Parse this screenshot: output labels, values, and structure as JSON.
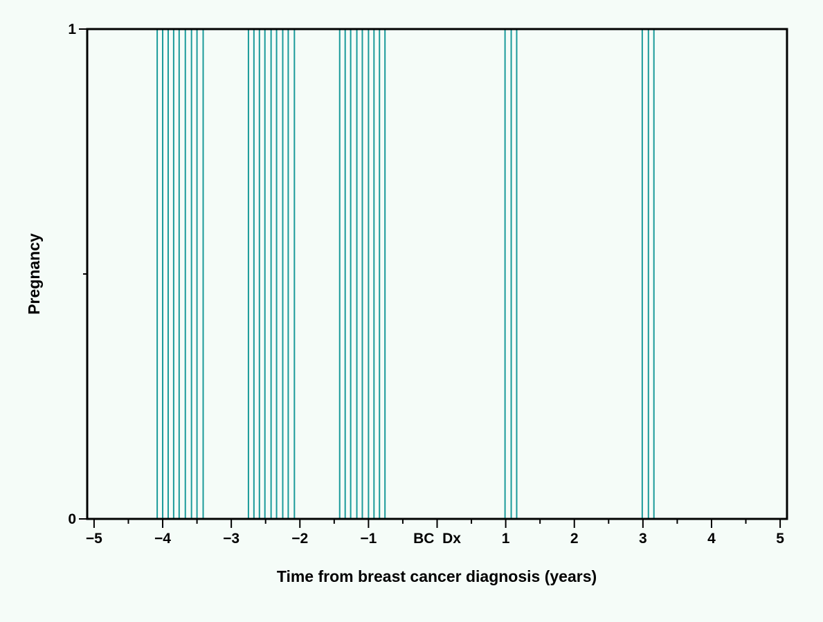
{
  "chart_data": {
    "type": "bar",
    "title": "",
    "xlabel": "Time from breast cancer diagnosis (years)",
    "ylabel": "Pregnancy",
    "xlim": [
      -5.1,
      5.1
    ],
    "ylim": [
      0,
      1
    ],
    "x_ticks": [
      {
        "value": -5,
        "label": "−5"
      },
      {
        "value": -4,
        "label": "−4"
      },
      {
        "value": -3,
        "label": "−3"
      },
      {
        "value": -2,
        "label": "−2"
      },
      {
        "value": -1,
        "label": "−1"
      },
      {
        "value": 0,
        "label": "BC  Dx"
      },
      {
        "value": 1,
        "label": "1"
      },
      {
        "value": 2,
        "label": "2"
      },
      {
        "value": 3,
        "label": "3"
      },
      {
        "value": 4,
        "label": "4"
      },
      {
        "value": 5,
        "label": "5"
      }
    ],
    "y_ticks": [
      {
        "value": 0,
        "label": "0"
      },
      {
        "value": 1,
        "label": "1"
      }
    ],
    "x_minor_tick_step": 0.5,
    "y_minor_ticks": [
      0.5
    ],
    "grid": false,
    "series": [
      {
        "color": "#1a9a9a",
        "x": [
          -4.08,
          -4.0,
          -3.92,
          -3.84,
          -3.76,
          -3.67,
          -3.58,
          -3.5,
          -3.41,
          -2.75,
          -2.67,
          -2.59,
          -2.51,
          -2.42,
          -2.34,
          -2.25,
          -2.17,
          -2.08,
          -1.42,
          -1.34,
          -1.26,
          -1.17,
          -1.09,
          -1.0,
          -0.92,
          -0.84,
          -0.76,
          0.99,
          1.08,
          1.16,
          2.99,
          3.08,
          3.16
        ],
        "values": [
          1,
          1,
          1,
          1,
          1,
          1,
          1,
          1,
          1,
          1,
          1,
          1,
          1,
          1,
          1,
          1,
          1,
          1,
          1,
          1,
          1,
          1,
          1,
          1,
          1,
          1,
          1,
          1,
          1,
          1,
          1,
          1,
          1
        ]
      }
    ]
  }
}
